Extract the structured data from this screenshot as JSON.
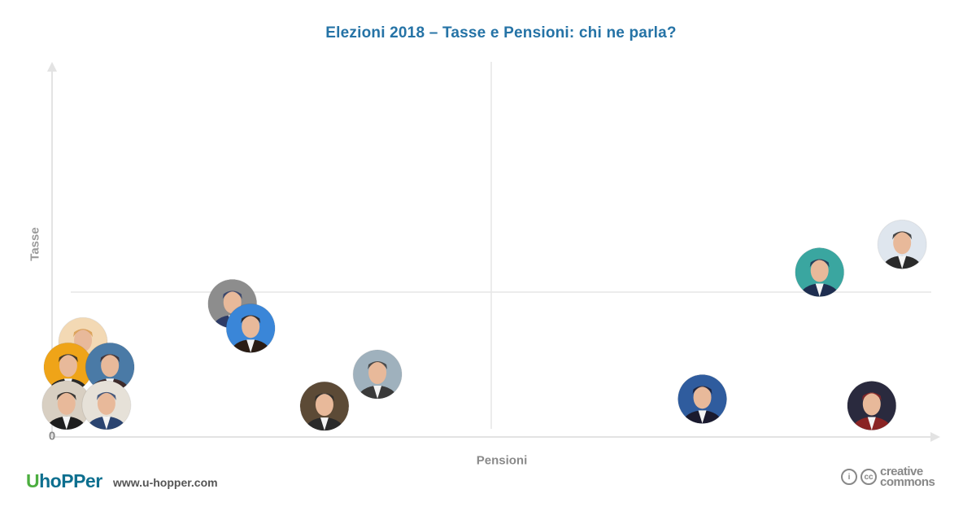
{
  "chart_data": {
    "type": "scatter",
    "title": "Elezioni 2018 – Tasse e Pensioni: chi ne parla?",
    "xlabel": "Pensioni",
    "ylabel": "Tasse",
    "origin_label": "0",
    "xlim": [
      0,
      100
    ],
    "ylim": [
      0,
      100
    ],
    "grid": false,
    "quadrant_lines": {
      "x": 50,
      "y": 50
    },
    "points": [
      {
        "x": 97.3,
        "y": 68,
        "color": "#dfe6ee",
        "accent": "#2a2a2a"
      },
      {
        "x": 87.8,
        "y": 57.5,
        "color": "#3aa6a0",
        "accent": "#1e2e50"
      },
      {
        "x": 20.2,
        "y": 45.6,
        "color": "#8d8d8d",
        "accent": "#2e3c66"
      },
      {
        "x": 22.3,
        "y": 36.4,
        "color": "#3a86d8",
        "accent": "#2a1c14"
      },
      {
        "x": 3.0,
        "y": 31.2,
        "color": "#f3d9b4",
        "accent": "#d79a4c"
      },
      {
        "x": 1.3,
        "y": 21.7,
        "color": "#efa418",
        "accent": "#2a2a2a"
      },
      {
        "x": 6.1,
        "y": 21.7,
        "color": "#4a7aa6",
        "accent": "#3e2c2c"
      },
      {
        "x": 36.9,
        "y": 19.0,
        "color": "#9fb1bd",
        "accent": "#3a3a3a"
      },
      {
        "x": 74.3,
        "y": 9.7,
        "color": "#2f5c9e",
        "accent": "#1a1a2e"
      },
      {
        "x": 1.1,
        "y": 7.4,
        "color": "#d8cfc2",
        "accent": "#1e1e1e"
      },
      {
        "x": 5.7,
        "y": 7.4,
        "color": "#e6e1d8",
        "accent": "#2b4470"
      },
      {
        "x": 30.8,
        "y": 7.0,
        "color": "#5c4a36",
        "accent": "#2a2a2a"
      },
      {
        "x": 93.8,
        "y": 7.2,
        "color": "#2a2a3e",
        "accent": "#8a2424"
      }
    ]
  },
  "footer": {
    "logo_u": "U",
    "logo_rest": "hoPPer",
    "website": "www.u-hopper.com",
    "cc_icon_1": "i",
    "cc_icon_2": "cc",
    "cc_line1": "creative",
    "cc_line2": "commons"
  }
}
